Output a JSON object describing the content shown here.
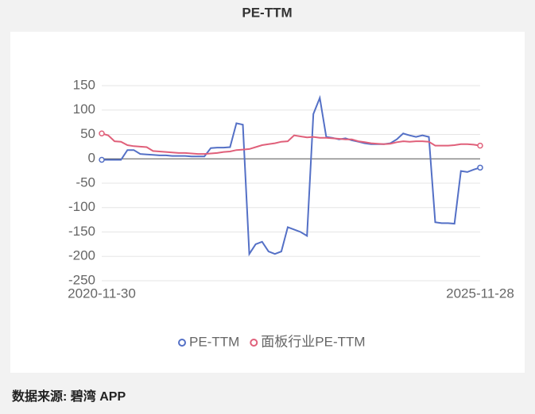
{
  "chart_data": {
    "type": "line",
    "title": "PE-TTM",
    "source": "数据来源: 碧湾 APP",
    "categories": [
      "2020-11-30",
      null,
      null,
      null,
      null,
      null,
      null,
      null,
      null,
      null,
      null,
      null,
      null,
      null,
      null,
      null,
      null,
      null,
      null,
      null,
      null,
      null,
      null,
      null,
      null,
      null,
      null,
      null,
      null,
      null,
      null,
      null,
      null,
      null,
      null,
      null,
      null,
      null,
      null,
      null,
      null,
      null,
      null,
      null,
      null,
      null,
      null,
      null,
      null,
      null,
      null,
      null,
      null,
      null,
      null,
      null,
      null,
      null,
      null,
      "2025-11-28"
    ],
    "series": [
      {
        "name": "PE-TTM",
        "color": "#5470c6",
        "values": [
          -2,
          -2,
          -2,
          -2,
          18,
          18,
          10,
          9,
          8,
          7,
          7,
          6,
          6,
          6,
          5,
          5,
          5,
          22,
          23,
          23,
          24,
          73,
          70,
          -195,
          -175,
          -170,
          -190,
          -195,
          -190,
          -140,
          -145,
          -150,
          -158,
          92,
          125,
          45,
          43,
          40,
          42,
          38,
          35,
          32,
          30,
          30,
          30,
          32,
          40,
          52,
          48,
          45,
          48,
          45,
          -130,
          -132,
          -132,
          -133,
          -25,
          -27,
          -22,
          -18
        ]
      },
      {
        "name": "面板行业PE-TTM",
        "color": "#e0607a",
        "values": [
          52,
          48,
          36,
          35,
          28,
          26,
          25,
          24,
          16,
          15,
          14,
          13,
          12,
          12,
          11,
          10,
          10,
          11,
          12,
          14,
          15,
          18,
          19,
          20,
          24,
          28,
          30,
          32,
          35,
          36,
          48,
          46,
          44,
          45,
          43,
          43,
          42,
          41,
          40,
          40,
          36,
          34,
          32,
          31,
          30,
          31,
          34,
          36,
          35,
          36,
          36,
          35,
          27,
          27,
          27,
          28,
          30,
          30,
          29,
          27
        ]
      }
    ],
    "ylim": [
      -250,
      150
    ],
    "yticks": [
      -250,
      -200,
      -150,
      -100,
      -50,
      0,
      50,
      100,
      150
    ],
    "grid": true
  }
}
